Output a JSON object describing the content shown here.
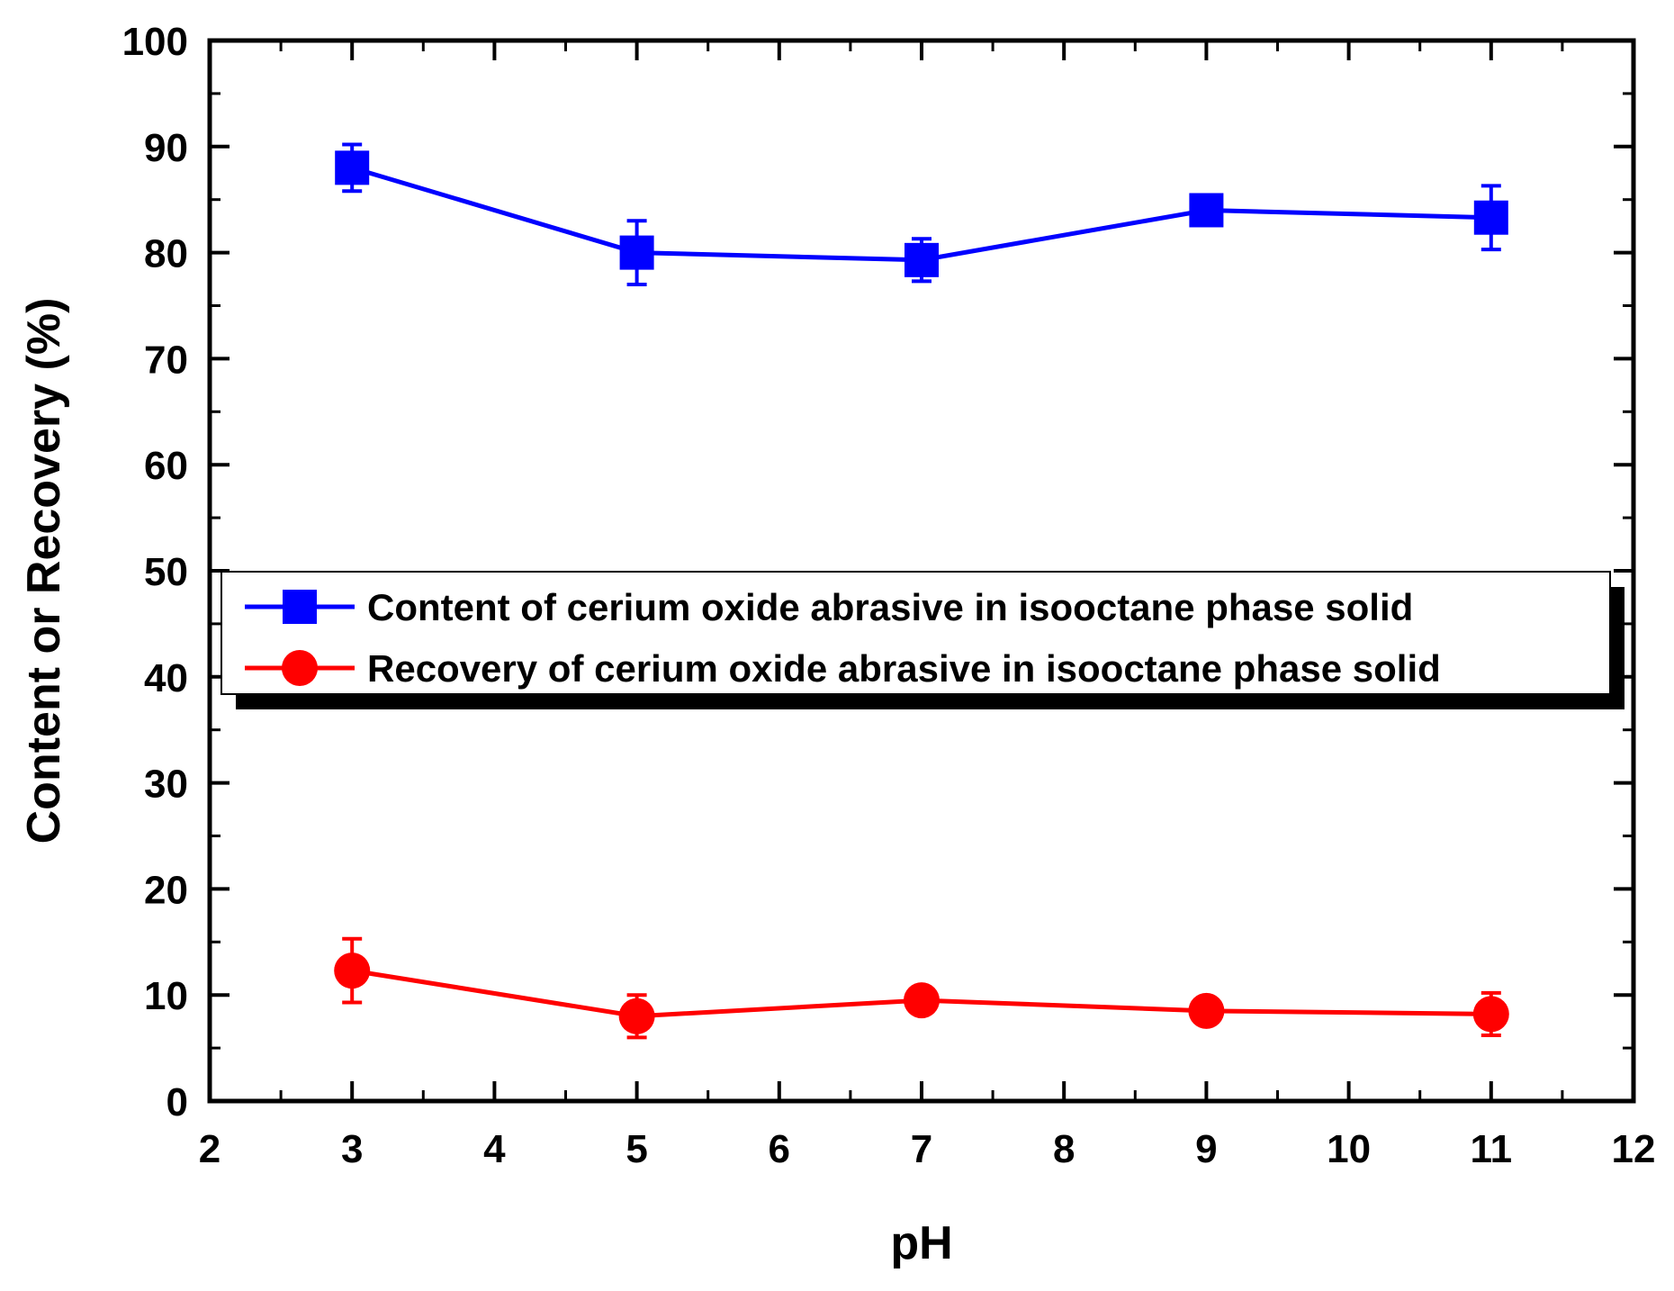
{
  "chart_data": {
    "type": "line",
    "title": "",
    "xlabel": "pH",
    "ylabel": "Content or Recovery (%)",
    "xlim": [
      2,
      12
    ],
    "ylim": [
      0,
      100
    ],
    "x_ticks": [
      2,
      3,
      4,
      5,
      6,
      7,
      8,
      9,
      10,
      11,
      12
    ],
    "y_ticks": [
      0,
      10,
      20,
      30,
      40,
      50,
      60,
      70,
      80,
      90,
      100
    ],
    "x_tick_labels": [
      "2",
      "3",
      "4",
      "5",
      "6",
      "7",
      "8",
      "9",
      "10",
      "11",
      "12"
    ],
    "y_tick_labels": [
      "0",
      "10",
      "20",
      "30",
      "40",
      "50",
      "60",
      "70",
      "80",
      "90",
      "100"
    ],
    "legend_position": "middle-center",
    "series": [
      {
        "name": "Content of cerium oxide abrasive in isooctane phase solid",
        "color": "#0000ff",
        "marker": "square",
        "x": [
          3,
          5,
          7,
          9,
          11
        ],
        "y": [
          88,
          80,
          79.3,
          84,
          83.3
        ],
        "error": [
          2.2,
          3,
          2,
          0,
          3
        ]
      },
      {
        "name": "Recovery of cerium oxide abrasive in isooctane phase solid",
        "color": "#ff0000",
        "marker": "circle",
        "x": [
          3,
          5,
          7,
          9,
          11
        ],
        "y": [
          12.3,
          8,
          9.5,
          8.5,
          8.2
        ],
        "error": [
          3,
          2,
          0,
          0,
          2
        ]
      }
    ]
  }
}
